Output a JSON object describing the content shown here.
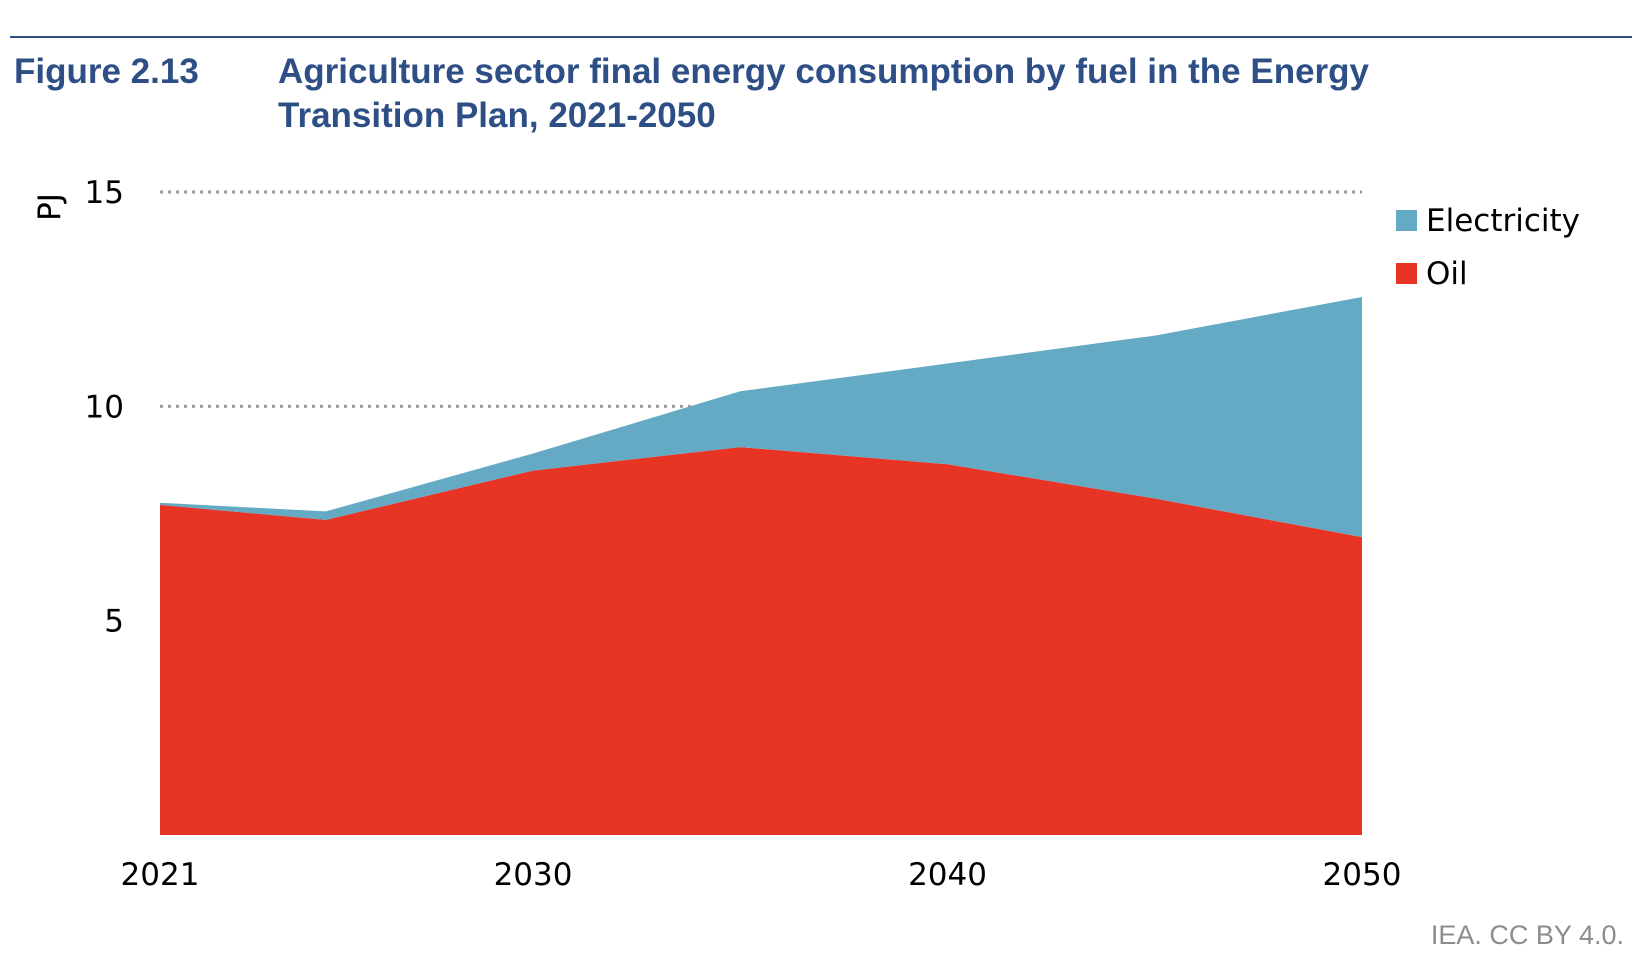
{
  "figure": {
    "label": "Figure 2.13",
    "title": "Agriculture sector final energy consumption by fuel in the Energy Transition Plan, 2021-2050",
    "credit": "IEA. CC BY 4.0."
  },
  "colors": {
    "title": "#2d4f86",
    "oil": "#e83424",
    "electricity": "#64aac4",
    "grid": "#9a9a9a"
  },
  "chart_data": {
    "type": "area",
    "stacked": true,
    "title": "Agriculture sector final energy consumption by fuel in the Energy Transition Plan, 2021-2050",
    "xlabel": "",
    "ylabel": "PJ",
    "x": [
      2021,
      2025,
      2030,
      2035,
      2040,
      2045,
      2050
    ],
    "xlim": [
      2021,
      2050
    ],
    "ylim": [
      0,
      15
    ],
    "x_ticks": [
      "2021",
      "2030",
      "2040",
      "2050"
    ],
    "x_tick_values": [
      2021,
      2030,
      2040,
      2050
    ],
    "y_ticks": [
      "5",
      "10",
      "15"
    ],
    "y_tick_values": [
      5,
      10,
      15
    ],
    "grid": "dotted horizontal",
    "legend_position": "top-right",
    "series": [
      {
        "name": "Oil",
        "values": [
          7.7,
          7.35,
          8.5,
          9.05,
          8.65,
          7.85,
          6.95
        ]
      },
      {
        "name": "Electricity",
        "values": [
          0.05,
          0.2,
          0.4,
          1.3,
          2.35,
          3.8,
          5.6
        ]
      }
    ]
  }
}
